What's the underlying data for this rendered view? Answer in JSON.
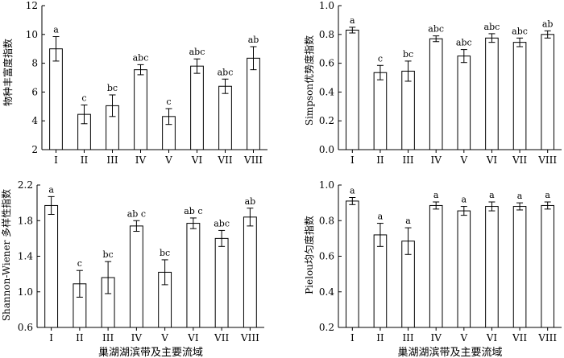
{
  "chart_data": [
    {
      "type": "bar",
      "ylabel": "物种丰富度指数",
      "xlabel": "",
      "ylim": [
        2,
        12
      ],
      "yticks": [
        2,
        4,
        6,
        8,
        10,
        12
      ],
      "categories": [
        "I",
        "II",
        "III",
        "IV",
        "V",
        "VI",
        "VII",
        "VIII"
      ],
      "values": [
        9.0,
        4.45,
        5.05,
        7.55,
        4.3,
        7.8,
        6.4,
        8.35
      ],
      "errors": [
        0.85,
        0.65,
        0.75,
        0.35,
        0.55,
        0.5,
        0.5,
        0.8
      ],
      "labels": [
        "a",
        "c",
        "bc",
        "abc",
        "c",
        "abc",
        "abc",
        "ab"
      ]
    },
    {
      "type": "bar",
      "ylabel": "Simpson优势度指数",
      "xlabel": "",
      "ylim": [
        0.0,
        1.0
      ],
      "yticks": [
        0.0,
        0.2,
        0.4,
        0.6,
        0.8,
        1.0
      ],
      "categories": [
        "I",
        "II",
        "III",
        "IV",
        "V",
        "VI",
        "VII",
        "VIII"
      ],
      "values": [
        0.83,
        0.535,
        0.545,
        0.77,
        0.65,
        0.775,
        0.745,
        0.8
      ],
      "errors": [
        0.02,
        0.05,
        0.07,
        0.02,
        0.045,
        0.03,
        0.03,
        0.025
      ],
      "labels": [
        "a",
        "c",
        "bc",
        "abc",
        "abc",
        "abc",
        "abc",
        "ab"
      ]
    },
    {
      "type": "bar",
      "ylabel": "Shannon-Wiener 多样性指数",
      "xlabel": "巢湖湖滨带及主要流域",
      "ylim": [
        0.6,
        2.2
      ],
      "yticks": [
        0.6,
        1.0,
        1.4,
        1.8,
        2.2
      ],
      "categories": [
        "I",
        "II",
        "III",
        "IV",
        "V",
        "VI",
        "VII",
        "VIII"
      ],
      "values": [
        1.97,
        1.09,
        1.16,
        1.74,
        1.22,
        1.77,
        1.6,
        1.84
      ],
      "errors": [
        0.1,
        0.15,
        0.18,
        0.06,
        0.14,
        0.06,
        0.09,
        0.1
      ],
      "labels": [
        "a",
        "c",
        "bc",
        "ab c",
        "bc",
        "ab c",
        "abc",
        "ab"
      ]
    },
    {
      "type": "bar",
      "ylabel": "Pielou均匀度指数",
      "xlabel": "巢湖湖滨带及主要流域",
      "ylim": [
        0.2,
        1.0
      ],
      "yticks": [
        0.2,
        0.4,
        0.6,
        0.8,
        1.0
      ],
      "categories": [
        "I",
        "II",
        "III",
        "IV",
        "V",
        "VI",
        "VII",
        "VIII"
      ],
      "values": [
        0.91,
        0.72,
        0.685,
        0.885,
        0.855,
        0.88,
        0.88,
        0.885
      ],
      "errors": [
        0.02,
        0.065,
        0.075,
        0.02,
        0.025,
        0.025,
        0.02,
        0.02
      ],
      "labels": [
        "a",
        "a",
        "a",
        "a",
        "a",
        "a",
        "a",
        "a"
      ]
    }
  ]
}
